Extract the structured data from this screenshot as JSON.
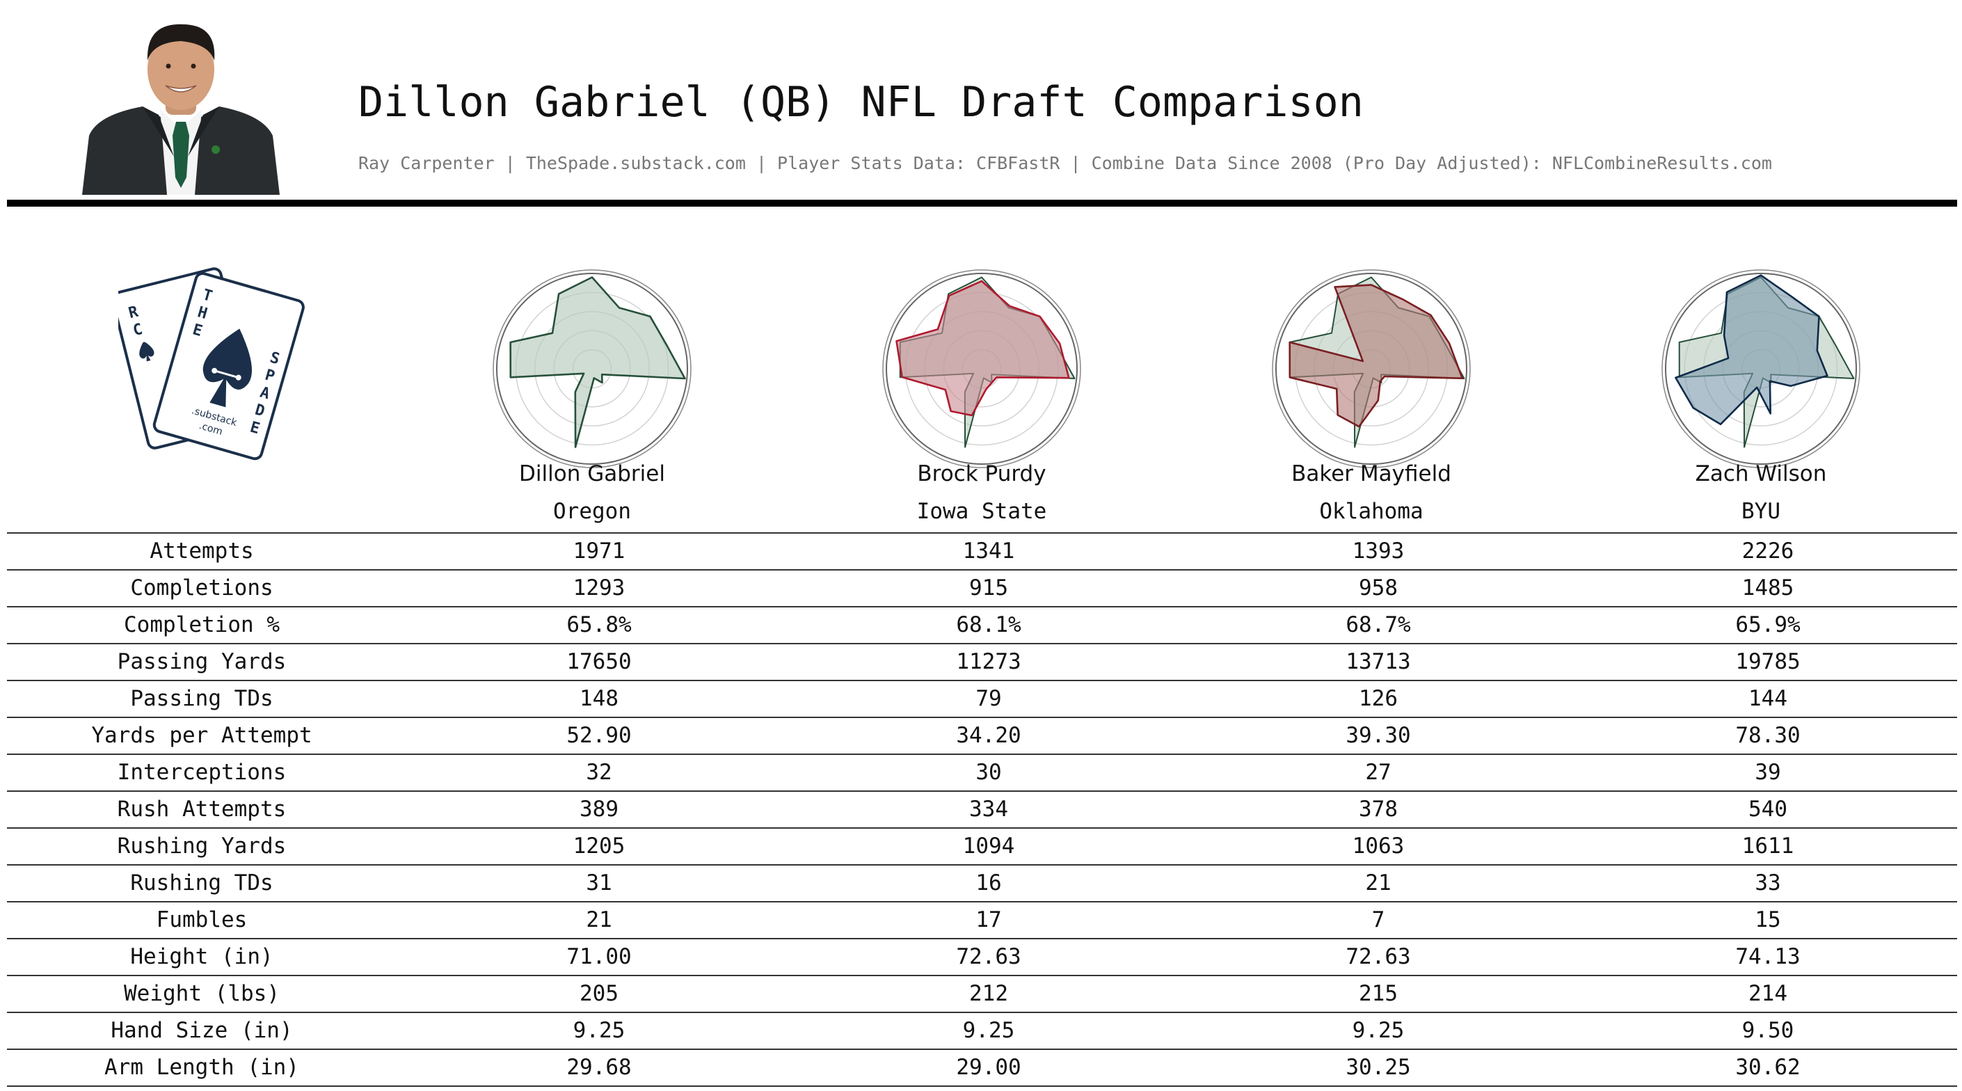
{
  "header": {
    "title": "Dillon Gabriel (QB) NFL Draft Comparison",
    "subtitle": "Ray Carpenter | TheSpade.substack.com | Player Stats Data: CFBFastR | Combine Data Since 2008 (Pro Day Adjusted): NFLCombineResults.com"
  },
  "logo": {
    "letters_left": [
      "R",
      "C"
    ],
    "letters_mid": [
      "T",
      "H",
      "E"
    ],
    "letters_right": [
      "S",
      "P",
      "A",
      "D",
      "E"
    ],
    "line1": ".substack",
    "line2": ".com"
  },
  "chart_data": {
    "type": "radar",
    "axes_count": 15,
    "rlim": [
      0,
      100
    ],
    "grid": true,
    "base_player": "Dillon Gabriel",
    "colors": {
      "Dillon Gabriel": "#27503a",
      "Brock Purdy": "#b01a2e",
      "Baker Mayfield": "#7a1f22",
      "Zach Wilson": "#0e2b4a"
    },
    "fill_colors": {
      "Dillon Gabriel": "#b7cbbd",
      "Brock Purdy": "#c88a92",
      "Baker Mayfield": "#b27b78",
      "Zach Wilson": "#7c98ae"
    },
    "series": [
      {
        "name": "Dillon Gabriel",
        "values": [
          96,
          70,
          82,
          82,
          98,
          12,
          18,
          10,
          84,
          30,
          10,
          86,
          90,
          56,
          86
        ]
      },
      {
        "name": "Brock Purdy",
        "values": [
          92,
          72,
          82,
          86,
          92,
          18,
          18,
          22,
          50,
          55,
          44,
          84,
          94,
          62,
          84
        ]
      },
      {
        "name": "Baker Mayfield",
        "values": [
          88,
          80,
          84,
          86,
          96,
          16,
          16,
          34,
          62,
          60,
          42,
          86,
          90,
          12,
          94
        ]
      },
      {
        "name": "Zach Wilson",
        "values": [
          98,
          82,
          82,
          62,
          70,
          36,
          16,
          48,
          20,
          72,
          82,
          90,
          36,
          52,
          88
        ]
      }
    ]
  },
  "players": [
    {
      "name": "Dillon Gabriel",
      "school": "Oregon"
    },
    {
      "name": "Brock Purdy",
      "school": "Iowa State"
    },
    {
      "name": "Baker Mayfield",
      "school": "Oklahoma"
    },
    {
      "name": "Zach Wilson",
      "school": "BYU"
    }
  ],
  "table": {
    "rows": [
      {
        "label": "Attempts",
        "values": [
          "1971",
          "1341",
          "1393",
          "2226"
        ]
      },
      {
        "label": "Completions",
        "values": [
          "1293",
          "915",
          "958",
          "1485"
        ]
      },
      {
        "label": "Completion %",
        "values": [
          "65.8%",
          "68.1%",
          "68.7%",
          "65.9%"
        ]
      },
      {
        "label": "Passing Yards",
        "values": [
          "17650",
          "11273",
          "13713",
          "19785"
        ]
      },
      {
        "label": "Passing TDs",
        "values": [
          "148",
          "79",
          "126",
          "144"
        ]
      },
      {
        "label": "Yards per Attempt",
        "values": [
          "52.90",
          "34.20",
          "39.30",
          "78.30"
        ]
      },
      {
        "label": "Interceptions",
        "values": [
          "32",
          "30",
          "27",
          "39"
        ]
      },
      {
        "label": "Rush Attempts",
        "values": [
          "389",
          "334",
          "378",
          "540"
        ]
      },
      {
        "label": "Rushing Yards",
        "values": [
          "1205",
          "1094",
          "1063",
          "1611"
        ]
      },
      {
        "label": "Rushing TDs",
        "values": [
          "31",
          "16",
          "21",
          "33"
        ]
      },
      {
        "label": "Fumbles",
        "values": [
          "21",
          "17",
          "7",
          "15"
        ]
      },
      {
        "label": "Height (in)",
        "values": [
          "71.00",
          "72.63",
          "72.63",
          "74.13"
        ]
      },
      {
        "label": "Weight (lbs)",
        "values": [
          "205",
          "212",
          "215",
          "214"
        ]
      },
      {
        "label": "Hand Size (in)",
        "values": [
          "9.25",
          "9.25",
          "9.25",
          "9.50"
        ]
      },
      {
        "label": "Arm Length (in)",
        "values": [
          "29.68",
          "29.00",
          "30.25",
          "30.62"
        ]
      }
    ]
  }
}
